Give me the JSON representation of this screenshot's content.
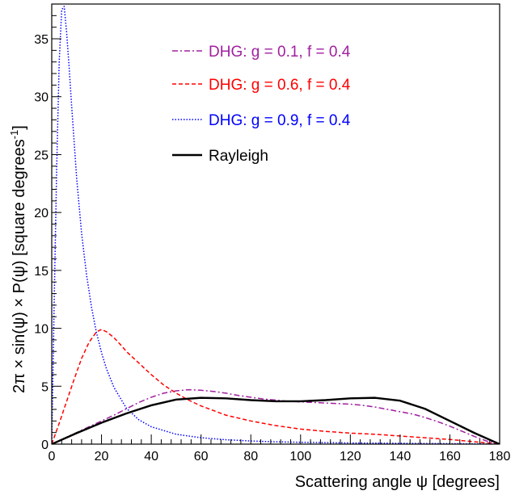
{
  "chart_data": {
    "type": "line",
    "xlabel": "Scattering angle ψ [degrees]",
    "ylabel": "2π × sin(ψ) × P(ψ) [square degrees",
    "ylabel_superscript": "-1",
    "ylabel_close": "]",
    "xlim": [
      0,
      180
    ],
    "ylim": [
      0,
      38
    ],
    "x_ticks": [
      "0",
      "20",
      "40",
      "60",
      "80",
      "100",
      "120",
      "140",
      "160",
      "180"
    ],
    "y_ticks": [
      "0",
      "5",
      "10",
      "15",
      "20",
      "25",
      "30",
      "35"
    ],
    "grid": false,
    "legend_position": "top-right",
    "series": [
      {
        "name": "DHG: g = 0.1, f = 0.4",
        "color": "#a020a0",
        "style": "dash-dot",
        "x": [
          0,
          5,
          10,
          15,
          20,
          25,
          30,
          35,
          40,
          45,
          50,
          55,
          60,
          65,
          70,
          75,
          80,
          85,
          90,
          95,
          100,
          105,
          110,
          115,
          120,
          125,
          130,
          135,
          140,
          145,
          150,
          155,
          160,
          165,
          170,
          175,
          180
        ],
        "y": [
          0,
          0.5,
          1.0,
          1.5,
          2.0,
          2.5,
          3.05,
          3.6,
          4.05,
          4.4,
          4.6,
          4.7,
          4.65,
          4.55,
          4.4,
          4.2,
          4.05,
          3.9,
          3.8,
          3.7,
          3.65,
          3.6,
          3.55,
          3.5,
          3.45,
          3.35,
          3.2,
          3.0,
          2.8,
          2.6,
          2.3,
          1.95,
          1.55,
          1.1,
          0.65,
          0.25,
          0
        ]
      },
      {
        "name": "DHG: g = 0.6, f = 0.4",
        "color": "#ff0000",
        "style": "dashed",
        "x": [
          0,
          3,
          6,
          9,
          12,
          15,
          18,
          20,
          22,
          25,
          28,
          30,
          35,
          40,
          45,
          50,
          55,
          60,
          65,
          70,
          80,
          90,
          100,
          110,
          120,
          130,
          140,
          150,
          160,
          170,
          180
        ],
        "y": [
          0,
          1.8,
          3.7,
          5.6,
          7.4,
          8.8,
          9.7,
          9.9,
          9.7,
          9.2,
          8.5,
          8.0,
          7.0,
          6.0,
          5.1,
          4.4,
          3.8,
          3.3,
          2.9,
          2.5,
          2.0,
          1.6,
          1.3,
          1.1,
          0.95,
          0.85,
          0.7,
          0.55,
          0.4,
          0.2,
          0
        ]
      },
      {
        "name": "DHG: g = 0.9, f = 0.4",
        "color": "#0000ff",
        "style": "dotted",
        "x": [
          0,
          1,
          2,
          3,
          4,
          5,
          6,
          7,
          8,
          10,
          12,
          14,
          16,
          18,
          20,
          22,
          25,
          30,
          35,
          40,
          50,
          60,
          70,
          80,
          90,
          100,
          120,
          140,
          160,
          180
        ],
        "y": [
          0,
          12.5,
          24.0,
          33.0,
          37.5,
          37.8,
          35.5,
          32.5,
          29.2,
          23.0,
          18.2,
          14.6,
          11.8,
          9.6,
          7.9,
          6.5,
          4.9,
          3.1,
          2.1,
          1.5,
          0.85,
          0.55,
          0.38,
          0.27,
          0.2,
          0.16,
          0.1,
          0.07,
          0.04,
          0
        ]
      },
      {
        "name": "Rayleigh",
        "color": "#000000",
        "style": "solid",
        "x": [
          0,
          10,
          20,
          30,
          40,
          50,
          60,
          70,
          80,
          90,
          100,
          110,
          120,
          130,
          140,
          150,
          160,
          170,
          180
        ],
        "y": [
          0,
          0.95,
          1.85,
          2.65,
          3.35,
          3.85,
          4.0,
          3.95,
          3.8,
          3.7,
          3.7,
          3.8,
          3.95,
          4.0,
          3.75,
          3.05,
          2.0,
          0.95,
          0
        ]
      }
    ]
  }
}
